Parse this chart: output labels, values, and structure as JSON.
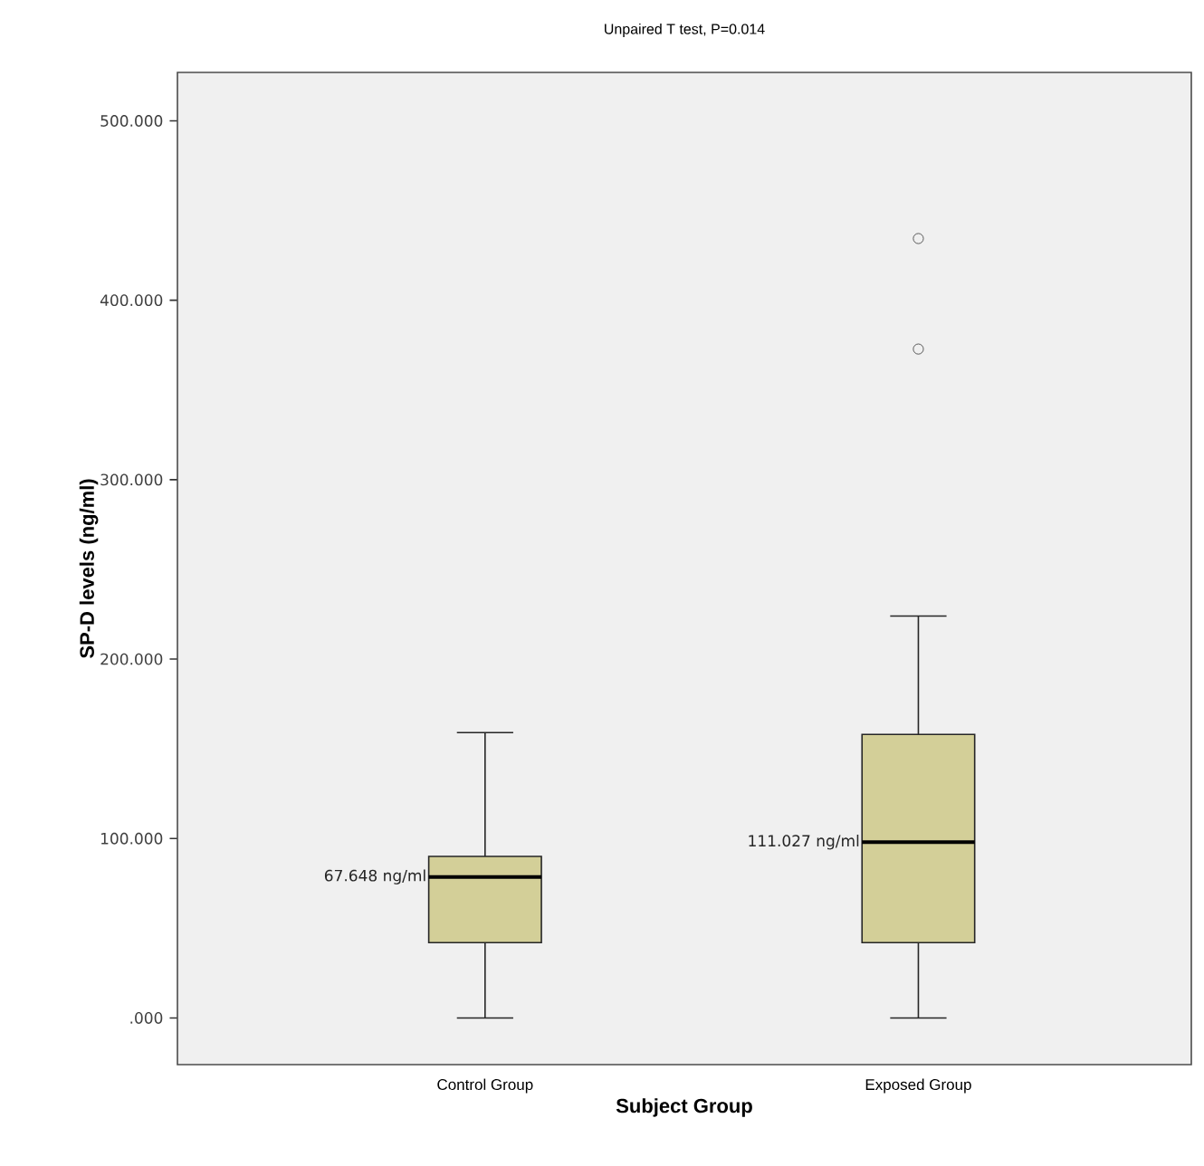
{
  "chart_data": {
    "type": "box",
    "title": "Unpaired T test, P=0.014",
    "xlabel": "Subject Group",
    "ylabel": "SP-D levels (ng/ml)",
    "categories": [
      "Control Group",
      "Exposed Group"
    ],
    "series": [
      {
        "color": "#d3cf98",
        "boxes": [
          {
            "low": 0,
            "q1": 42,
            "median": 78.6,
            "q3": 90,
            "high": 159
          },
          {
            "low": 0,
            "q1": 42,
            "median": 98,
            "q3": 158,
            "high": 224,
            "outliers": [
              372.8,
              434.4
            ]
          }
        ]
      }
    ],
    "ylim": [
      -26,
      527
    ],
    "yticks": [
      {
        "value": 0,
        "label": ".000"
      },
      {
        "value": 100,
        "label": "100.000"
      },
      {
        "value": 200,
        "label": "200.000"
      },
      {
        "value": 300,
        "label": "300.000"
      },
      {
        "value": 400,
        "label": "400.000"
      },
      {
        "value": 500,
        "label": "500.000"
      }
    ],
    "annotations": [
      "67.648 ng/ml",
      "111.027 ng/ml"
    ],
    "grid": false
  }
}
